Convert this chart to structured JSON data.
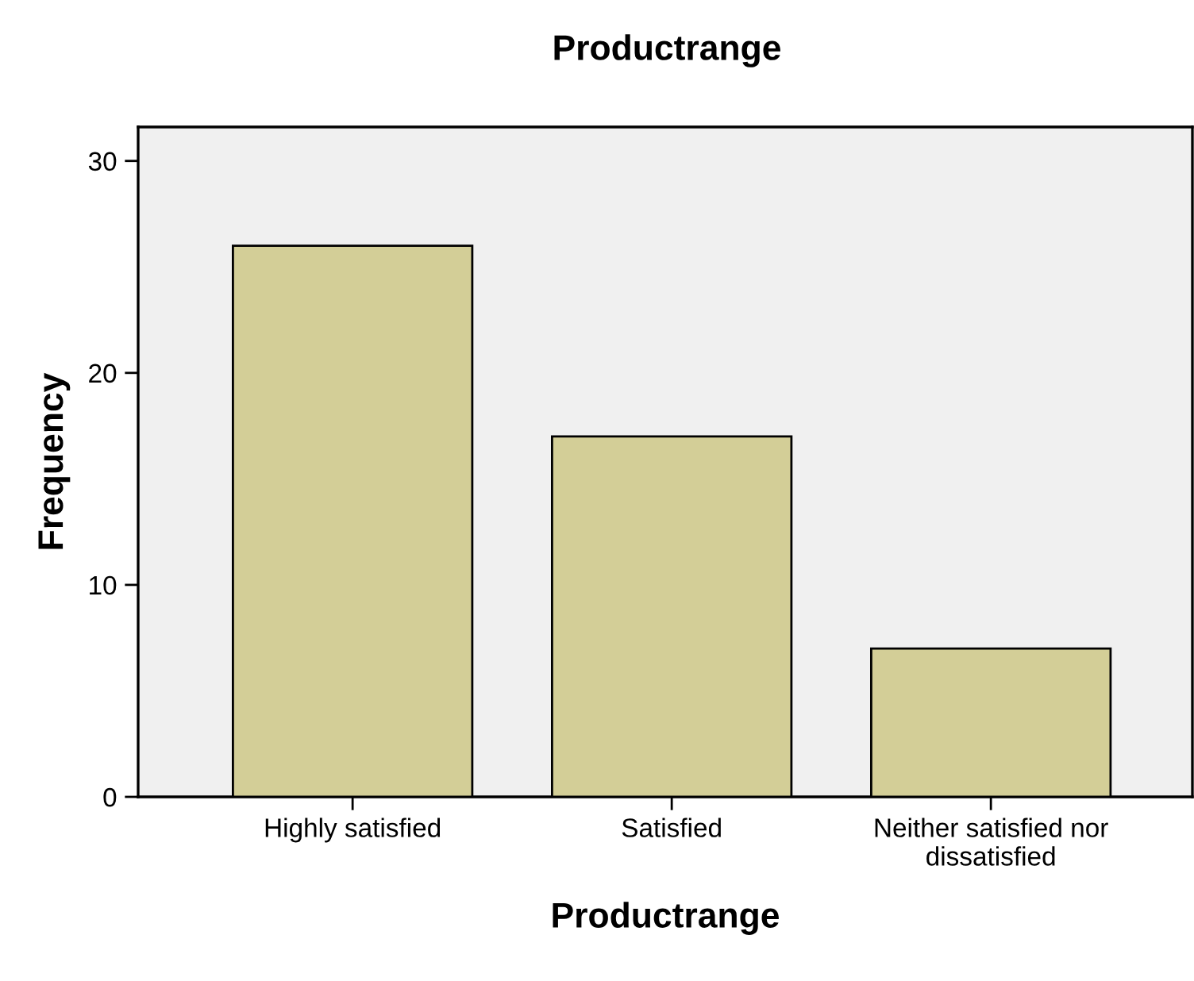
{
  "chart_data": {
    "type": "bar",
    "title": "Productrange",
    "xlabel": "Productrange",
    "ylabel": "Frequency",
    "categories": [
      "Highly satisfied",
      "Satisfied",
      "Neither satisfied nor\ndissatisfied"
    ],
    "values": [
      26,
      17,
      7
    ],
    "color": "#d3ce97",
    "ylim": [
      0,
      31.6
    ],
    "yticks": [
      0,
      10,
      20,
      30
    ],
    "grid": false,
    "legend": false
  }
}
